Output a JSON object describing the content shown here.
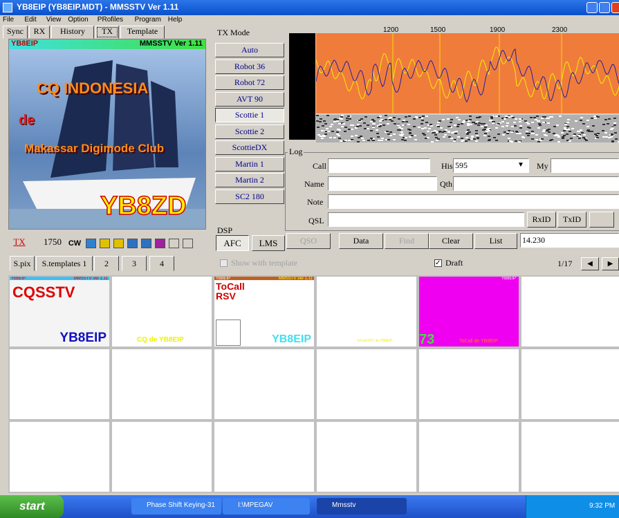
{
  "window": {
    "title": "YB8EIP (YB8EIP.MDT) - MMSSTV Ver 1.11",
    "menu": [
      "File",
      "Edit",
      "View",
      "Option",
      "PRofiles",
      "Program",
      "Help"
    ]
  },
  "tabs": [
    "Sync",
    "RX",
    "History",
    "TX",
    "Template"
  ],
  "spectrum_scale": [
    "1200",
    "1500",
    "1900",
    "2300"
  ],
  "image": {
    "call": "YB8EIP",
    "version": "MMSSTV Ver 1.11",
    "line1": "CQ INDONESIA",
    "line2": "de",
    "line3": "Makassar Digimode Club",
    "big": "YB8ZD"
  },
  "tx_mode": {
    "label": "TX Mode",
    "buttons": [
      "Auto",
      "Robot 36",
      "Robot 72",
      "AVT 90",
      "Scottie 1",
      "Scottie 2",
      "ScottieDX",
      "Martin 1",
      "Martin 2",
      "SC2 180"
    ]
  },
  "tx_toolbar": {
    "tx": "TX",
    "tone": "1750",
    "cw": "CW"
  },
  "dsp": {
    "label": "DSP",
    "buttons": [
      "AFC",
      "LMS"
    ]
  },
  "log": {
    "label": "Log",
    "call": "Call",
    "his": "His",
    "his_value": "595",
    "my": "My",
    "name": "Name",
    "qth": "Qth",
    "note": "Note",
    "qsl": "QSL",
    "rxid": "RxID",
    "txid": "TxID",
    "buttons": [
      "QSO",
      "Data",
      "Find",
      "Clear",
      "List"
    ],
    "frequency": "14.230"
  },
  "stock": {
    "tabs": [
      "S.pix",
      "S.templates 1",
      "2",
      "3",
      "4"
    ],
    "show_with_template": "Show with template",
    "draft": "Draft",
    "page": "1/17"
  },
  "thumbnails": {
    "t1": {
      "call": "YB8EIP",
      "version": "MMSSTV Ver 1.11",
      "main": "CQSSTV",
      "sign": "YB8EIP"
    },
    "t2": {
      "text": "CQ de YB8EIP"
    },
    "t3": {
      "call": "YB8EIP",
      "version": "MMSSTV Ver 1.11",
      "to": "ToCall",
      "rsv": "RSV",
      "sign": "YB8EIP"
    },
    "t4": {
      "text": "ToCall RST de YB8EIP"
    },
    "t5": {
      "call": "YB8EIP",
      "num": "73",
      "text": "ToCall de YB8EIP"
    }
  },
  "taskbar": {
    "start": "start",
    "tasks": [
      "Phase Shift Keying-31",
      "I:\\MPEGAV",
      "Mmsstv"
    ],
    "clock": "9:32 PM"
  }
}
